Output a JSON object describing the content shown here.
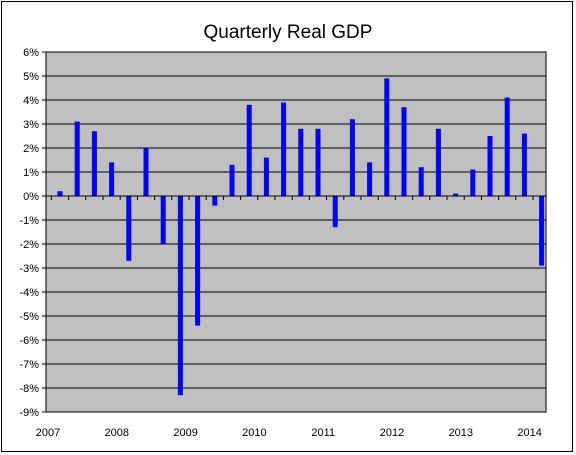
{
  "chart_data": {
    "type": "bar",
    "title": "Quarterly Real GDP",
    "xlabel": "",
    "ylabel": "",
    "ylim": [
      -9,
      6
    ],
    "y_tick_labels": [
      "6%",
      "5%",
      "4%",
      "3%",
      "2%",
      "1%",
      "0%",
      "-1%",
      "-2%",
      "-3%",
      "-4%",
      "-5%",
      "-6%",
      "-7%",
      "-8%",
      "-9%"
    ],
    "x_tick_labels": [
      "2007",
      "2008",
      "2009",
      "2010",
      "2011",
      "2012",
      "2013",
      "2014"
    ],
    "categories": [
      "2007 Q1",
      "2007 Q2",
      "2007 Q3",
      "2007 Q4",
      "2008 Q1",
      "2008 Q2",
      "2008 Q3",
      "2008 Q4",
      "2009 Q1",
      "2009 Q2",
      "2009 Q3",
      "2009 Q4",
      "2010 Q1",
      "2010 Q2",
      "2010 Q3",
      "2010 Q4",
      "2011 Q1",
      "2011 Q2",
      "2011 Q3",
      "2011 Q4",
      "2012 Q1",
      "2012 Q2",
      "2012 Q3",
      "2012 Q4",
      "2013 Q1",
      "2013 Q2",
      "2013 Q3",
      "2013 Q4",
      "2014 Q1"
    ],
    "values": [
      0.2,
      3.1,
      2.7,
      1.4,
      -2.7,
      2.0,
      -2.0,
      -8.3,
      -5.4,
      -0.4,
      1.3,
      3.8,
      1.6,
      3.9,
      2.8,
      2.8,
      -1.3,
      3.2,
      1.4,
      4.9,
      3.7,
      1.2,
      2.8,
      0.1,
      1.1,
      2.5,
      4.1,
      2.6,
      -2.9
    ],
    "grid": true,
    "legend": "none",
    "colors": {
      "bar": "#0000ff",
      "plot_background": "#c0c0c0",
      "gridline": "#000000",
      "frame": "#000000"
    }
  }
}
